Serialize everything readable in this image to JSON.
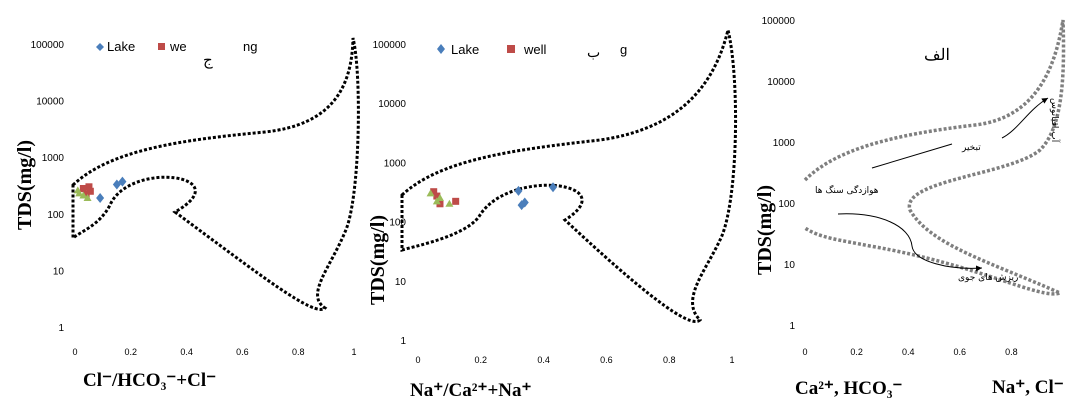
{
  "colors": {
    "lake": "#4a7ebb",
    "well": "#be4b48",
    "green": "#9bbb59",
    "envelope_dark": "#000000",
    "envelope_grey": "#7f7f7f"
  },
  "chart_data": [
    {
      "type": "scatter",
      "panel_mark": "ج",
      "xlabel": "Cl⁻/HCO₃⁻+Cl⁻",
      "ylabel": "TDS(mg/l)",
      "yscale": "log",
      "ylim": [
        1,
        100000
      ],
      "xlim": [
        0,
        1
      ],
      "yticks": [
        "1",
        "10",
        "100",
        "1000",
        "10000",
        "100000"
      ],
      "xticks": [
        "0",
        "0.2",
        "0.4",
        "0.6",
        "0.8",
        "1"
      ],
      "legend": {
        "placement": "top-left",
        "entries": [
          "Lake",
          "we",
          "ng"
        ]
      },
      "series": [
        {
          "name": "Lake",
          "marker": "diamond",
          "color": "#4a7ebb",
          "points": [
            [
              0.15,
              330
            ],
            [
              0.17,
              370
            ],
            [
              0.09,
              190
            ]
          ]
        },
        {
          "name": "well",
          "marker": "square",
          "color": "#be4b48",
          "points": [
            [
              0.05,
              300
            ],
            [
              0.04,
              220
            ],
            [
              0.055,
              250
            ],
            [
              0.03,
              280
            ]
          ]
        },
        {
          "marker": "triangle",
          "color": "#9bbb59",
          "points": [
            [
              0.01,
              260
            ],
            [
              0.03,
              210
            ],
            [
              0.045,
              190
            ],
            [
              0.015,
              230
            ]
          ]
        }
      ]
    },
    {
      "type": "scatter",
      "panel_mark": "ب",
      "xlabel": "Na⁺/Ca²⁺+Na⁺",
      "ylabel": "TDS(mg/l)",
      "yscale": "log",
      "ylim": [
        1,
        100000
      ],
      "xlim": [
        0,
        1
      ],
      "yticks": [
        "1",
        "10",
        "100",
        "1000",
        "10000",
        "100000"
      ],
      "xticks": [
        "0",
        "0.2",
        "0.4",
        "0.6",
        "0.8",
        "1"
      ],
      "legend": {
        "placement": "top-left",
        "entries": [
          "Lake",
          "well",
          "g"
        ]
      },
      "series": [
        {
          "name": "Lake",
          "marker": "diamond",
          "color": "#4a7ebb",
          "points": [
            [
              0.32,
              330
            ],
            [
              0.43,
              380
            ],
            [
              0.34,
              210
            ],
            [
              0.33,
              190
            ]
          ]
        },
        {
          "name": "well",
          "marker": "square",
          "color": "#be4b48",
          "points": [
            [
              0.05,
              320
            ],
            [
              0.06,
              270
            ],
            [
              0.07,
              200
            ],
            [
              0.12,
              220
            ]
          ]
        },
        {
          "marker": "triangle",
          "color": "#9bbb59",
          "points": [
            [
              0.04,
              300
            ],
            [
              0.07,
              250
            ],
            [
              0.1,
              200
            ],
            [
              0.06,
              220
            ]
          ]
        }
      ]
    },
    {
      "type": "line",
      "panel_mark": "الف",
      "xlabel_left": "Ca²⁺, HCO₃⁻",
      "xlabel_right": "Na⁺, Cl⁻",
      "ylabel": "TDS(mg/l)",
      "yscale": "log",
      "ylim": [
        1,
        100000
      ],
      "xlim": [
        0,
        1
      ],
      "yticks": [
        "1",
        "10",
        "100",
        "1000",
        "10000",
        "100000"
      ],
      "xticks": [
        "0",
        "0.2",
        "0.4",
        "0.6",
        "0.8"
      ],
      "annotations": [
        "آب اقیانوس",
        "تبخیر",
        "هوازدگی سنگ ها",
        "ریزش های جوی"
      ]
    }
  ]
}
